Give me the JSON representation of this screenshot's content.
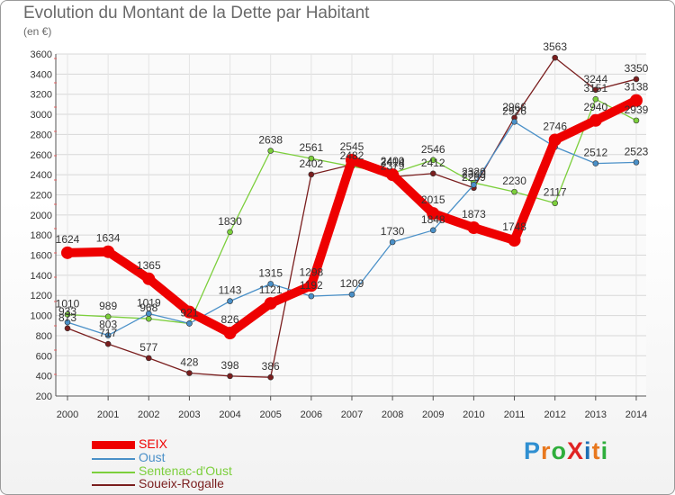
{
  "header": {
    "title": "Evolution du Montant de la Dette par Habitant",
    "unit": "(en €)"
  },
  "logo": {
    "text": "ProXiti",
    "letters": [
      "P",
      "r",
      "o",
      "X",
      "i",
      "t",
      "i"
    ],
    "colors": [
      "#2f8fd1",
      "#e8781e",
      "#2fae3c",
      "#e02424",
      "#1e6fb5",
      "#e8781e",
      "#2fae3c"
    ]
  },
  "chart_data": {
    "type": "line",
    "x": [
      "2000",
      "2001",
      "2002",
      "2003",
      "2004",
      "2005",
      "2006",
      "2007",
      "2008",
      "2009",
      "2010",
      "2011",
      "2012",
      "2013",
      "2014"
    ],
    "ylim": [
      200,
      3600
    ],
    "yticks": [
      200,
      400,
      600,
      800,
      1000,
      1200,
      1400,
      1600,
      1800,
      2000,
      2200,
      2400,
      2600,
      2800,
      3000,
      3200,
      3400,
      3600
    ],
    "grid": true,
    "legend_position": "bottom-left",
    "series": [
      {
        "name": "SEIX",
        "color": "#ee0000",
        "values": [
          1624,
          1634,
          1365,
          1035,
          826,
          1121,
          1298,
          2545,
          2400,
          2015,
          1873,
          1748,
          2746,
          2940,
          3138
        ],
        "labels": [
          "1624",
          "1634",
          "1365",
          "",
          "826",
          "1121",
          "1298",
          "2545",
          "2400",
          "2015",
          "1873",
          "1748",
          "2746",
          "2940",
          "3138"
        ]
      },
      {
        "name": "Oust",
        "color": "#4a90c8",
        "values": [
          933,
          803,
          1019,
          921,
          1143,
          1315,
          1192,
          1209,
          1730,
          1848,
          2300,
          2926,
          2676,
          2512,
          2523
        ],
        "labels": [
          "933",
          "803",
          "1019",
          "921",
          "1143",
          "1315",
          "1192",
          "1209",
          "1730",
          "1848",
          "2300",
          "2926",
          "",
          "2512",
          "2523"
        ]
      },
      {
        "name": "Sentenac-d'Oust",
        "color": "#7ccf3c",
        "values": [
          1010,
          989,
          968,
          921,
          1830,
          2638,
          2561,
          2482,
          2414,
          2546,
          2320,
          2230,
          2117,
          3151,
          2939
        ],
        "labels": [
          "1010",
          "989",
          "968",
          "",
          "1830",
          "2638",
          "2561",
          "2482",
          "2414",
          "2546",
          "2320",
          "2230",
          "2117",
          "3151",
          "2939"
        ]
      },
      {
        "name": "Soueix-Rogalle",
        "color": "#7a1e1e",
        "values": [
          873,
          717,
          577,
          428,
          398,
          386,
          2402,
          2500,
          2379,
          2412,
          2269,
          2966,
          3563,
          3244,
          3350
        ],
        "labels": [
          "873",
          "717",
          "577",
          "428",
          "398",
          "386",
          "2402",
          "",
          "2379",
          "2412",
          "2269",
          "2966",
          "3563",
          "3244",
          "3350"
        ]
      }
    ]
  }
}
